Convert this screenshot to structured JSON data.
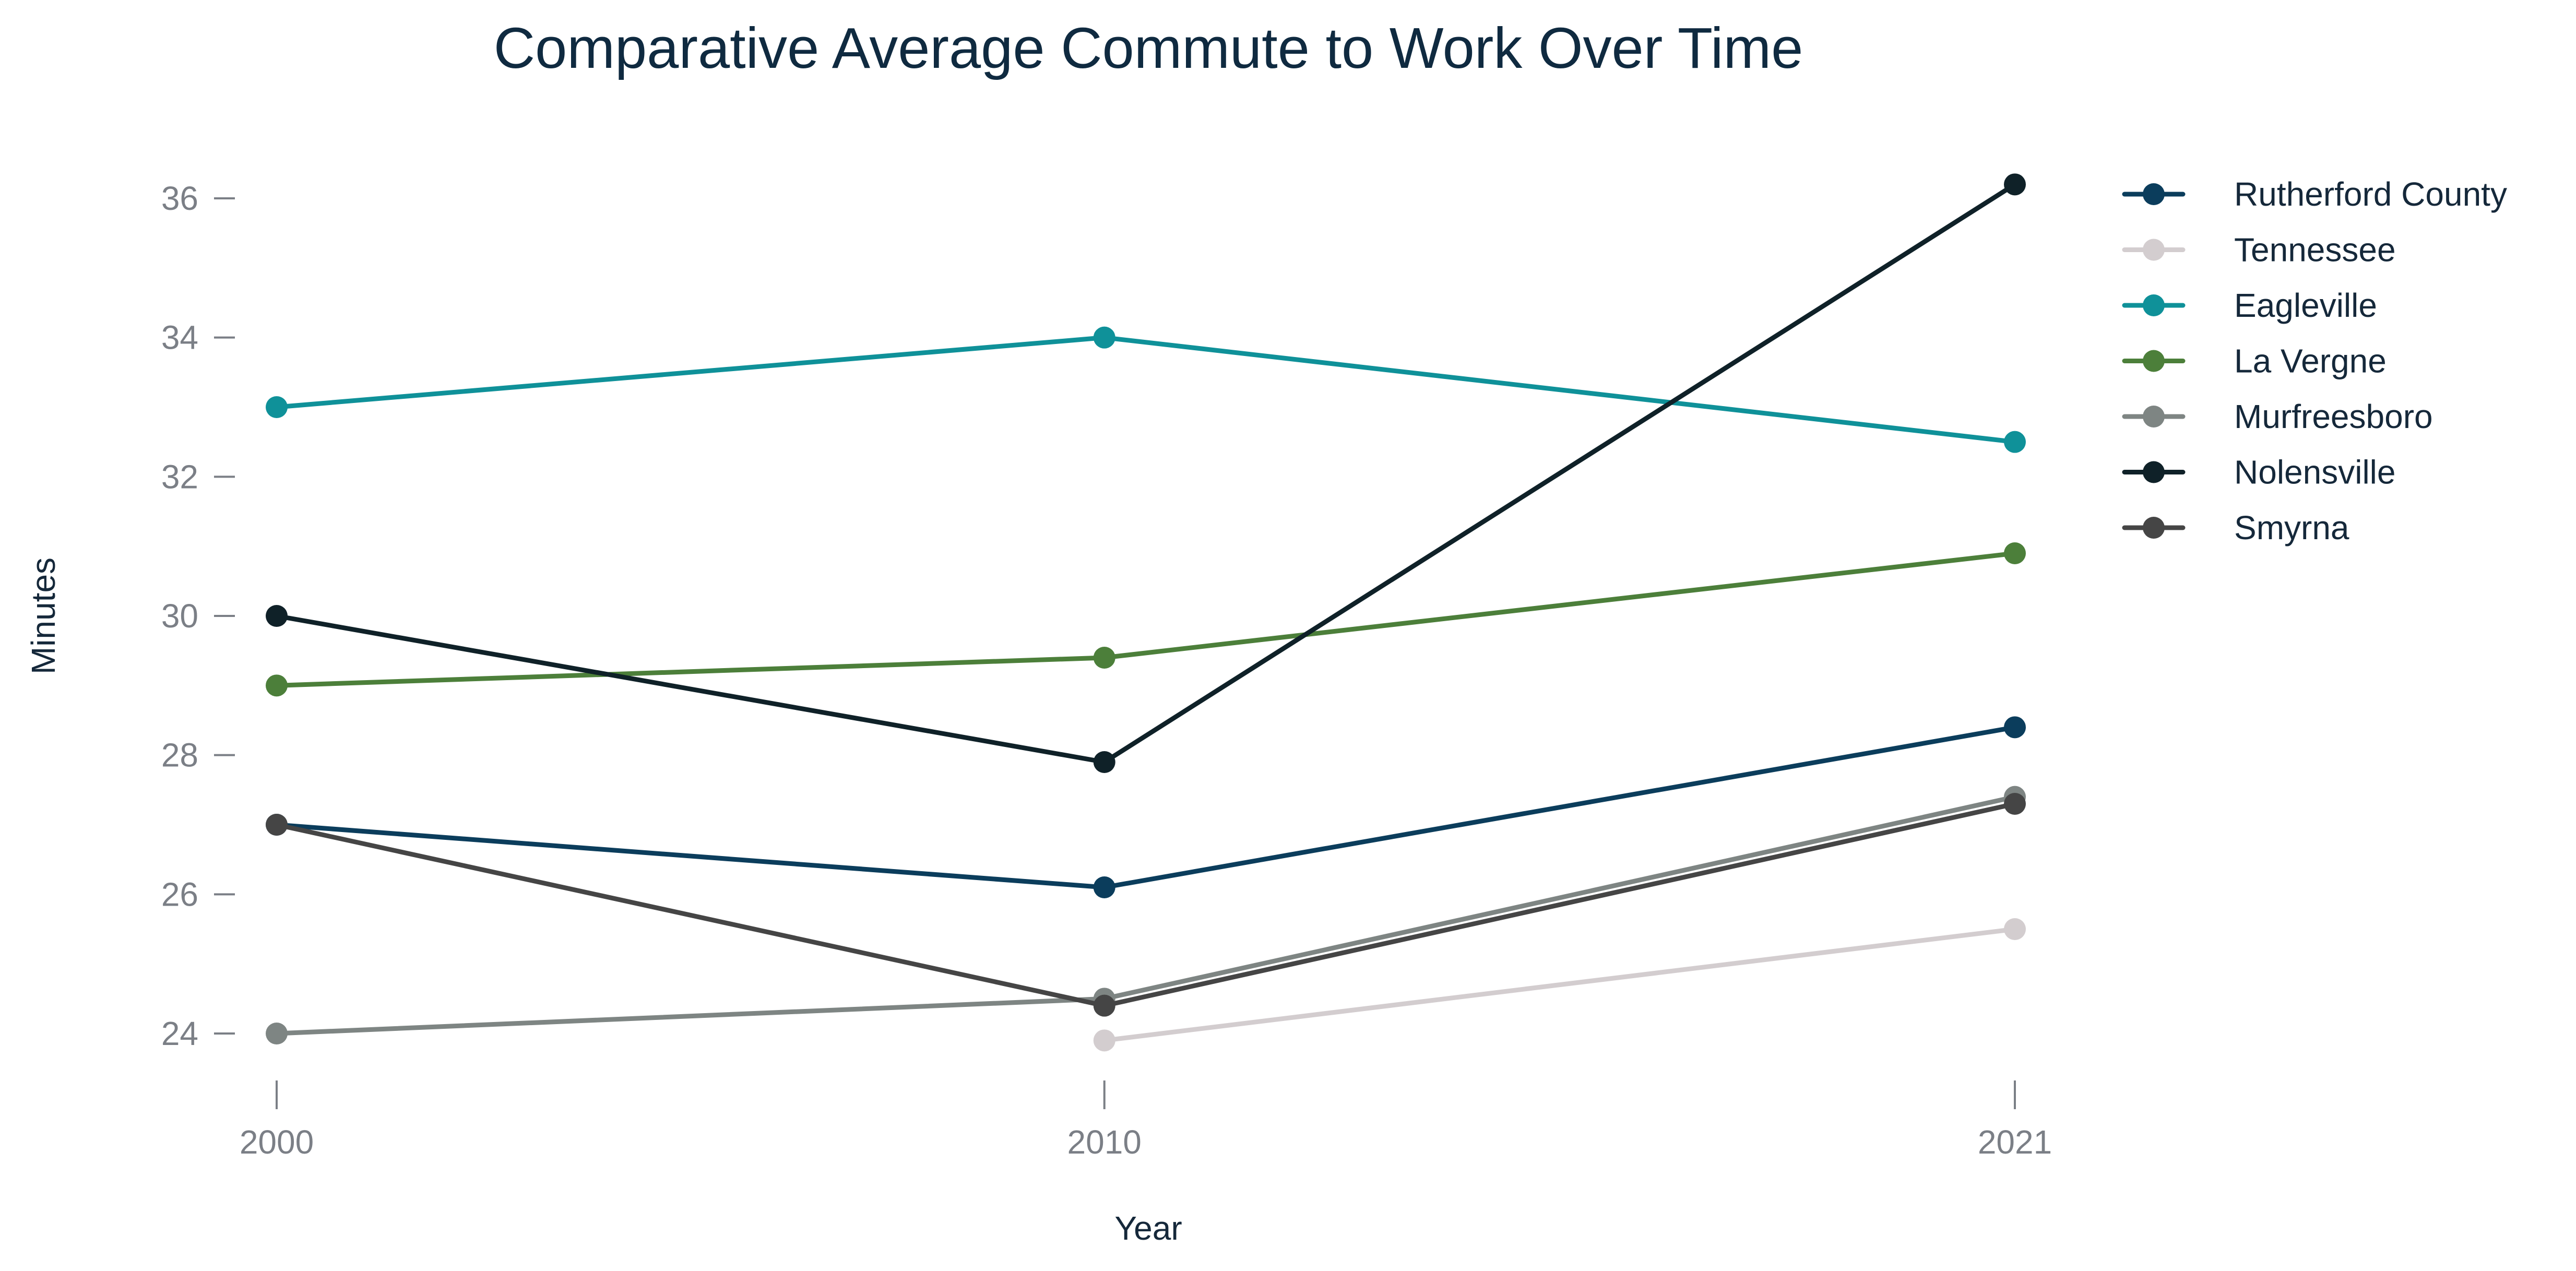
{
  "chart_data": {
    "type": "line",
    "title": "Comparative Average Commute to Work Over Time",
    "xlabel": "Year",
    "ylabel": "Minutes",
    "x": [
      2000,
      2010,
      2021
    ],
    "yticks": [
      24,
      26,
      28,
      30,
      32,
      34,
      36
    ],
    "ylim": [
      23.2,
      37.3
    ],
    "grid": false,
    "legend_position": "right",
    "series": [
      {
        "name": "Rutherford County",
        "color": "#0b3d5c",
        "values": [
          27.0,
          26.1,
          28.4
        ]
      },
      {
        "name": "Tennessee",
        "color": "#d3cdcf",
        "values": [
          null,
          23.9,
          25.5
        ]
      },
      {
        "name": "Eagleville",
        "color": "#0f9199",
        "values": [
          33.0,
          34.0,
          32.5
        ]
      },
      {
        "name": "La Vergne",
        "color": "#4c7f3a",
        "values": [
          29.0,
          29.4,
          30.9
        ]
      },
      {
        "name": "Murfreesboro",
        "color": "#7e8583",
        "values": [
          24.0,
          24.5,
          27.4
        ]
      },
      {
        "name": "Nolensville",
        "color": "#0f2128",
        "values": [
          30.0,
          27.9,
          36.2
        ]
      },
      {
        "name": "Smyrna",
        "color": "#454545",
        "values": [
          27.0,
          24.4,
          27.3
        ]
      }
    ]
  }
}
